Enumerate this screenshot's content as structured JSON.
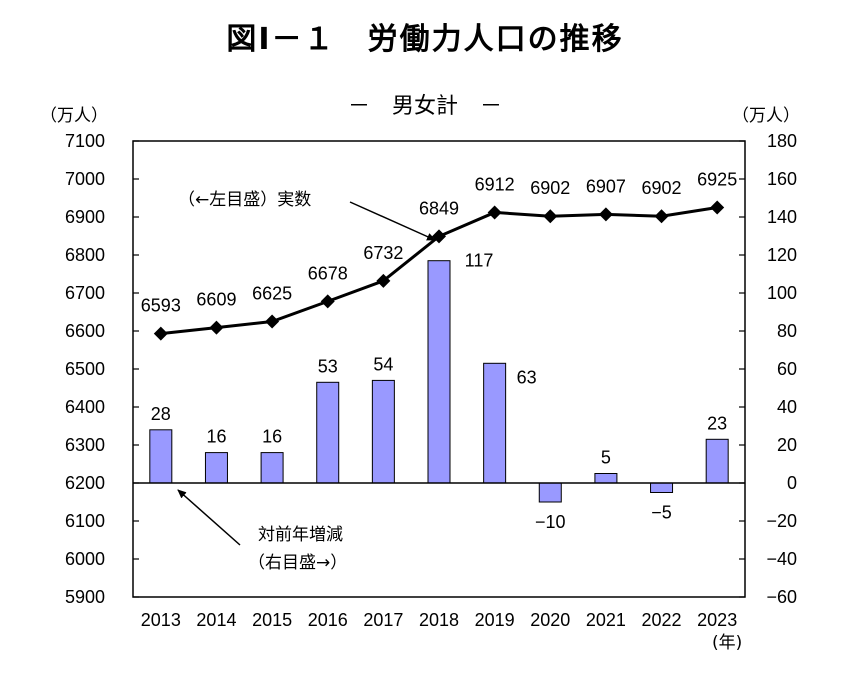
{
  "title": "図Ⅰ－１　労働力人口の推移",
  "subtitle": "－　男女計　－",
  "chart_data": {
    "type": "bar+line",
    "categories": [
      "2013",
      "2014",
      "2015",
      "2016",
      "2017",
      "2018",
      "2019",
      "2020",
      "2021",
      "2022",
      "2023"
    ],
    "line_series": {
      "axis": "left",
      "values": [
        6593,
        6609,
        6625,
        6678,
        6732,
        6849,
        6912,
        6902,
        6907,
        6902,
        6925
      ],
      "color": "#000000"
    },
    "bar_series": {
      "axis": "right",
      "values": [
        28,
        16,
        16,
        53,
        54,
        117,
        63,
        -10,
        5,
        -5,
        23
      ],
      "color": "#9999ff"
    },
    "left_axis": {
      "unit_label": "（万人）",
      "min": 5900,
      "max": 7100,
      "step": 100
    },
    "right_axis": {
      "unit_label": "（万人）",
      "min": -60,
      "max": 180,
      "step": 20
    },
    "x_unit_label": "(年)",
    "annotations": {
      "line_note": "（←左目盛）実数",
      "bar_note_line1": "対前年増減",
      "bar_note_line2": "（右目盛→）"
    },
    "grid": false
  }
}
